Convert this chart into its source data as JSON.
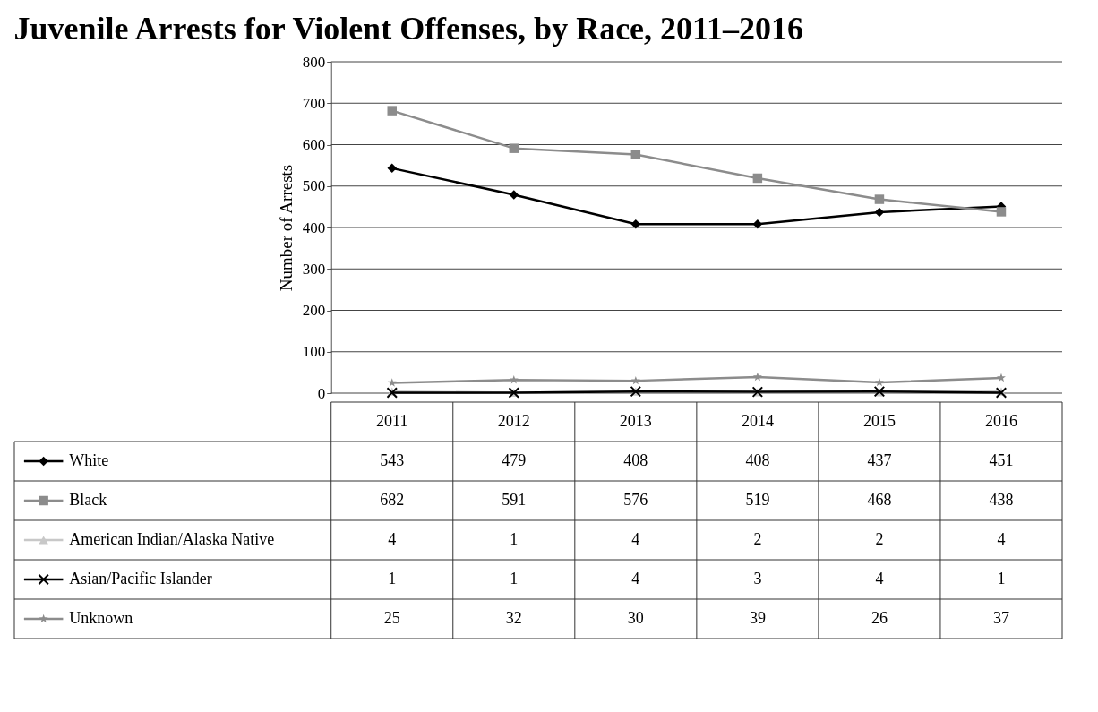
{
  "chart_data": {
    "type": "line",
    "title": "Juvenile Arrests for Violent Offenses, by Race, 2011–2016",
    "ylabel": "Number of Arrests",
    "categories": [
      "2011",
      "2012",
      "2013",
      "2014",
      "2015",
      "2016"
    ],
    "series": [
      {
        "name": "White",
        "color": "#000000",
        "marker": "diamond",
        "values": [
          543,
          479,
          408,
          408,
          437,
          451
        ]
      },
      {
        "name": "Black",
        "color": "#8c8c8c",
        "marker": "square",
        "values": [
          682,
          591,
          576,
          519,
          468,
          438
        ]
      },
      {
        "name": "American Indian/Alaska Native",
        "color": "#c8c8c8",
        "marker": "triangle",
        "values": [
          4,
          1,
          4,
          2,
          2,
          4
        ]
      },
      {
        "name": "Asian/Pacific Islander",
        "color": "#000000",
        "marker": "cross",
        "values": [
          1,
          1,
          4,
          3,
          4,
          1
        ]
      },
      {
        "name": "Unknown",
        "color": "#8c8c8c",
        "marker": "star",
        "values": [
          25,
          32,
          30,
          39,
          26,
          37
        ]
      }
    ],
    "ylim": [
      0,
      800
    ],
    "yticks": [
      0,
      100,
      200,
      300,
      400,
      500,
      600,
      700,
      800
    ],
    "grid": "y",
    "legend": "bottom",
    "data_labels": true,
    "line_style": "solid"
  }
}
